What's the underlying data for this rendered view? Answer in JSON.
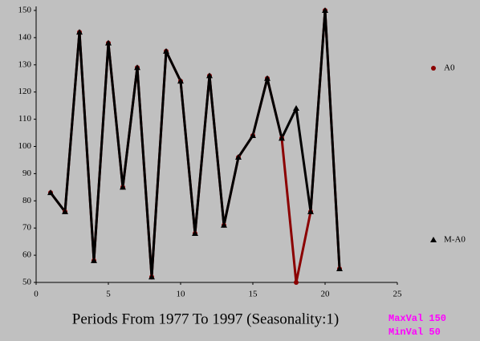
{
  "chart_data": {
    "type": "line",
    "xlabel": "Periods From 1977 To 1997 (Seasonality:1)",
    "x": [
      1,
      2,
      3,
      4,
      5,
      6,
      7,
      8,
      9,
      10,
      11,
      12,
      13,
      14,
      15,
      16,
      17,
      18,
      19,
      20,
      21
    ],
    "series": [
      {
        "name": "A0",
        "color": "#8b0000",
        "marker": "circle",
        "values": [
          83,
          76,
          142,
          58,
          138,
          85,
          129,
          52,
          135,
          124,
          68,
          126,
          71,
          96,
          104,
          125,
          103,
          50,
          76,
          150,
          55
        ]
      },
      {
        "name": "M-A0",
        "color": "#000000",
        "marker": "triangle",
        "values": [
          83,
          76,
          142,
          58,
          138,
          85,
          129,
          52,
          135,
          124,
          68,
          126,
          71,
          96,
          104,
          125,
          103,
          114,
          76,
          150,
          55
        ]
      }
    ],
    "xlim": [
      0,
      25
    ],
    "xticks": [
      0,
      5,
      10,
      15,
      20,
      25
    ],
    "ylim": [
      50,
      150
    ],
    "yticks": [
      50,
      60,
      70,
      80,
      90,
      100,
      110,
      120,
      130,
      140,
      150
    ],
    "legend": "right",
    "annotations": [
      "MaxVal 150",
      "MinVal 50"
    ],
    "annotation_color": "#ff00ff"
  }
}
